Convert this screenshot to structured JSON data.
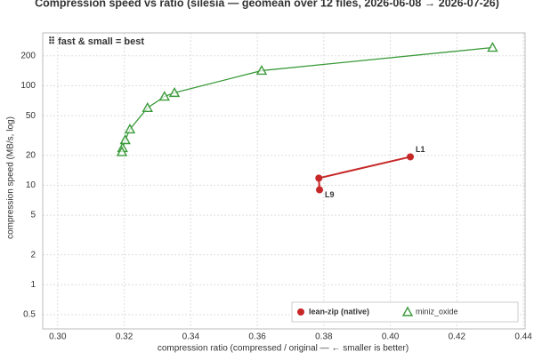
{
  "chart_data": {
    "type": "line",
    "title": "Compression speed vs ratio (silesia — geomean over 12 files, 2026-06-08 → 2026-07-26)",
    "xlabel": "compression ratio (compressed / original — ← smaller is better)",
    "ylabel": "compression speed (MB/s, log)",
    "annotation": "⠿ fast & small = best",
    "annotation_color": "#2e8b2e",
    "xlim": [
      0.2955,
      0.4405
    ],
    "xticks": [
      {
        "value": 0.3,
        "label": "0.30"
      },
      {
        "value": 0.32,
        "label": "0.32"
      },
      {
        "value": 0.34,
        "label": "0.34"
      },
      {
        "value": 0.36,
        "label": "0.36"
      },
      {
        "value": 0.38,
        "label": "0.38"
      },
      {
        "value": 0.4,
        "label": "0.40"
      },
      {
        "value": 0.42,
        "label": "0.42"
      },
      {
        "value": 0.44,
        "label": "0.44"
      }
    ],
    "ylim": [
      0.36,
      340
    ],
    "yscale": "log",
    "yticks": [
      0.5,
      1,
      2,
      5,
      10,
      20,
      50,
      100,
      200
    ],
    "grid": true,
    "legend": "lower right",
    "series": [
      {
        "name": "lean-zip (native)",
        "color": "#c62828",
        "marker": "circle",
        "x": [
          0.406,
          0.3785,
          0.3787
        ],
        "values": [
          19.3,
          11.8,
          9.0
        ],
        "labels": [
          "L1",
          null,
          "L9"
        ]
      },
      {
        "name": "miniz_oxide",
        "color": "#3a9a3a",
        "marker": "triangle-open",
        "x": [
          0.4307,
          0.3613,
          0.3351,
          0.3321,
          0.327,
          0.3217,
          0.3203,
          0.3195,
          0.3193
        ],
        "values": [
          242,
          142,
          85,
          78,
          60,
          36.5,
          28.5,
          23.7,
          21.6
        ]
      }
    ]
  }
}
